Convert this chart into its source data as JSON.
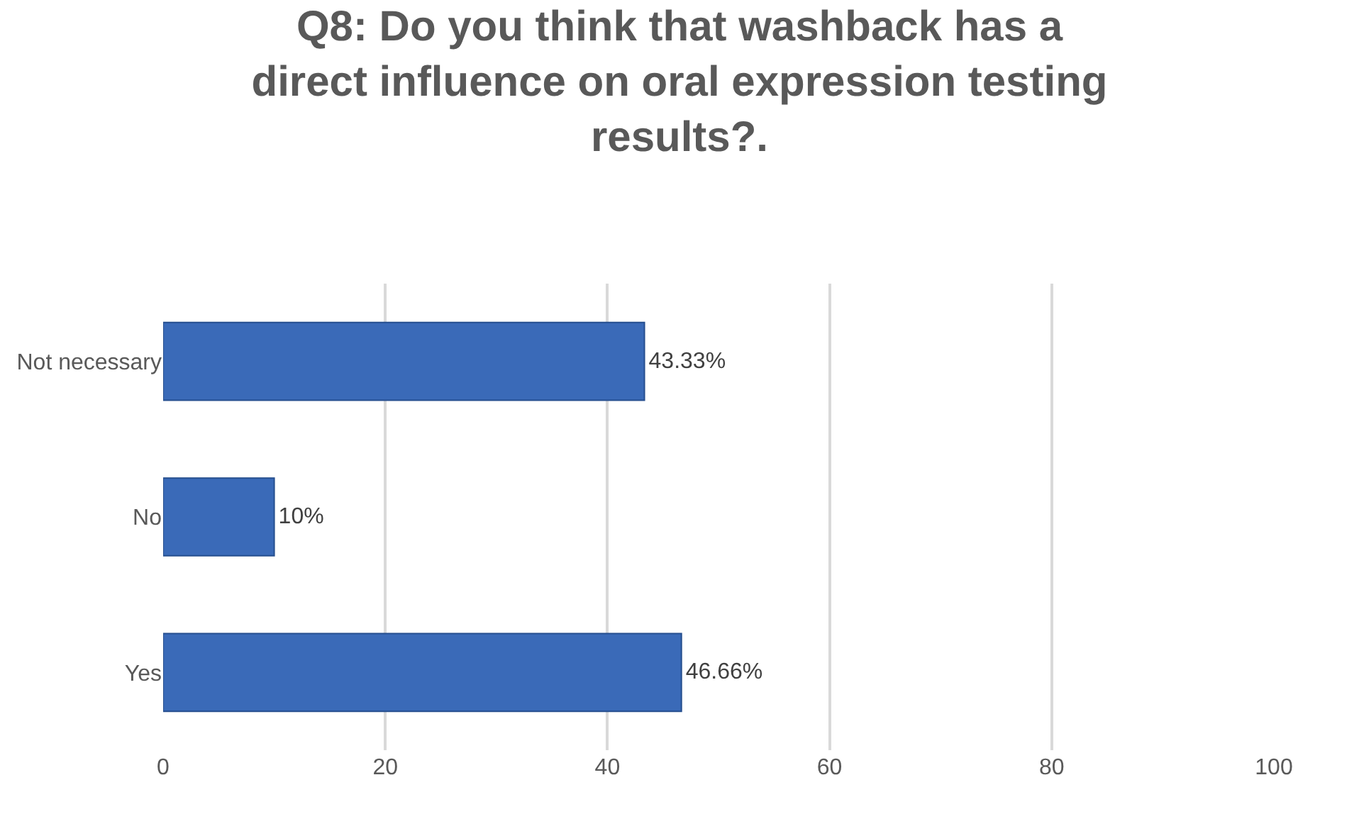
{
  "chart_data": {
    "type": "bar",
    "orientation": "horizontal",
    "title": "Q8: Do you think that washback has a\ndirect influence on oral expression testing\nresults?.",
    "categories": [
      "Not necessary",
      "No",
      "Yes"
    ],
    "values": [
      43.33,
      10,
      46.66
    ],
    "value_labels": [
      "43.33%",
      "10%",
      "46.66%"
    ],
    "color": "#3a6ab8",
    "xlim": [
      0,
      100
    ],
    "xticks": [
      0,
      20,
      40,
      60,
      80,
      100
    ],
    "grid": "x",
    "legend": false
  }
}
